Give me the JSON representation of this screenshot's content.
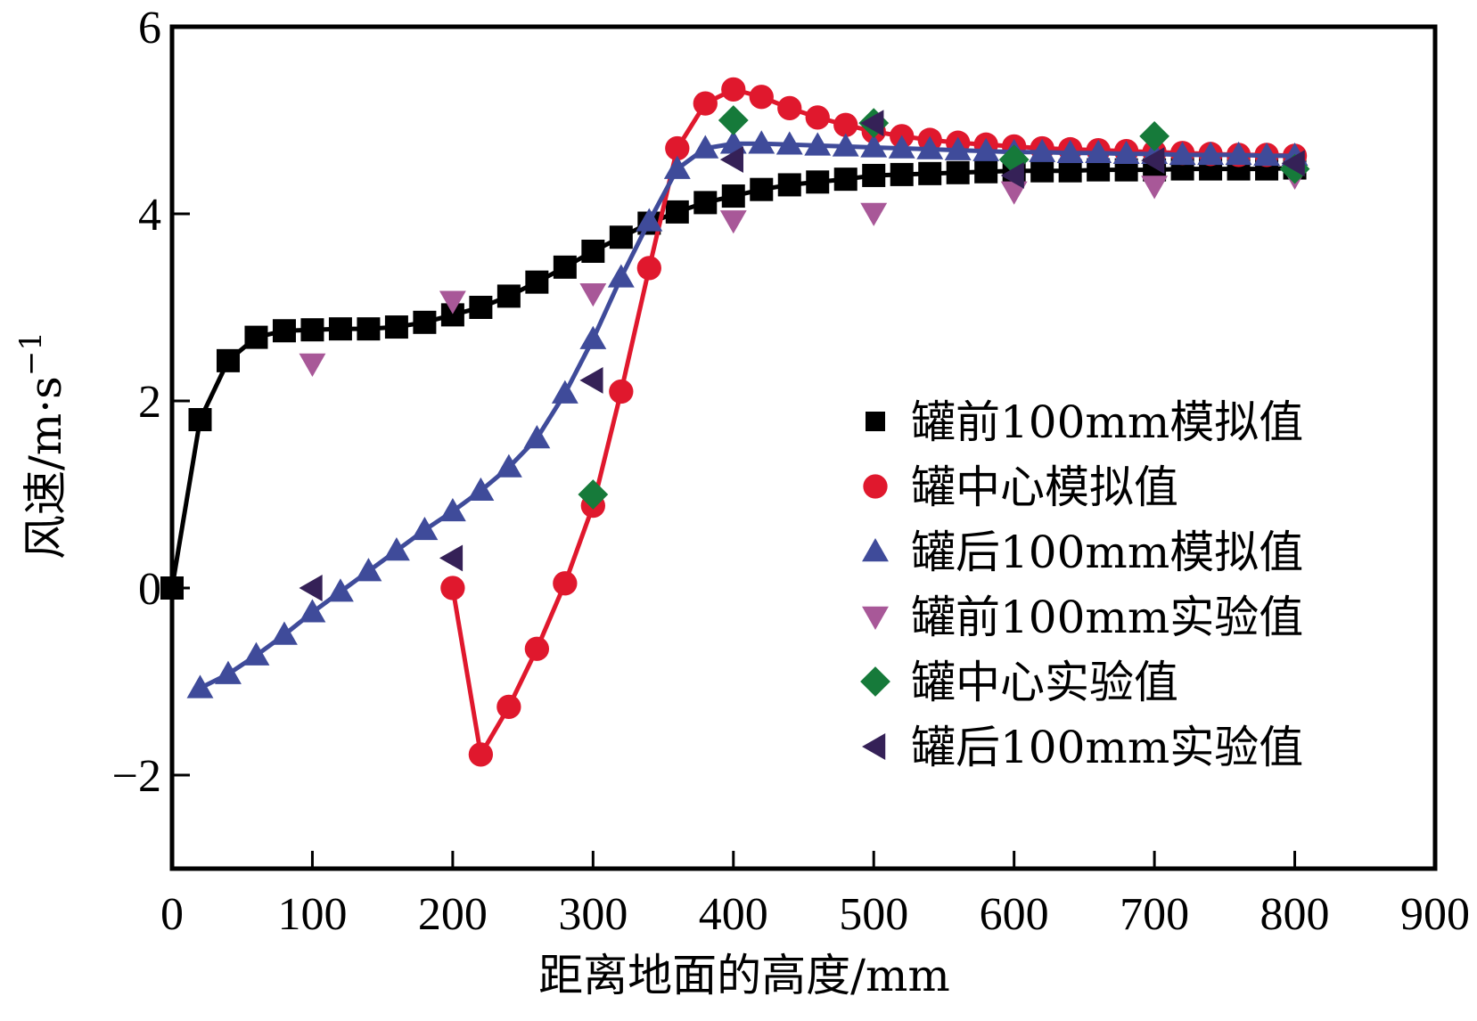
{
  "chart_data": {
    "type": "line",
    "title": "",
    "xlabel": "距离地面的高度/mm",
    "ylabel": "风速/m·s",
    "ylabel_superscript": "−1",
    "xlim": [
      0,
      900
    ],
    "ylim": [
      -3,
      6
    ],
    "xticks": [
      0,
      100,
      200,
      300,
      400,
      500,
      600,
      700,
      800,
      900
    ],
    "xtick_labels": [
      "0",
      "100",
      "200",
      "300",
      "400",
      "500",
      "600",
      "700",
      "800",
      "900"
    ],
    "yticks": [
      -2,
      0,
      2,
      4,
      6
    ],
    "ytick_labels": [
      "−2",
      "0",
      "2",
      "4",
      "6"
    ],
    "grid": false,
    "legend_position": "center-right",
    "series": [
      {
        "name": "罐前100mm模拟值",
        "marker": "square",
        "color": "#000000",
        "line": true,
        "x": [
          0,
          20,
          40,
          60,
          80,
          100,
          120,
          140,
          160,
          180,
          200,
          220,
          240,
          260,
          280,
          300,
          320,
          340,
          360,
          380,
          400,
          420,
          440,
          460,
          480,
          500,
          520,
          540,
          560,
          580,
          600,
          620,
          640,
          660,
          680,
          700,
          720,
          740,
          760,
          780,
          800
        ],
        "y": [
          0,
          1.8,
          2.43,
          2.68,
          2.75,
          2.76,
          2.77,
          2.77,
          2.79,
          2.84,
          2.92,
          3.0,
          3.12,
          3.27,
          3.43,
          3.6,
          3.75,
          3.9,
          4.02,
          4.12,
          4.19,
          4.26,
          4.31,
          4.34,
          4.37,
          4.41,
          4.42,
          4.43,
          4.44,
          4.45,
          4.46,
          4.46,
          4.46,
          4.47,
          4.47,
          4.47,
          4.48,
          4.48,
          4.48,
          4.48,
          4.49
        ]
      },
      {
        "name": "罐中心模拟值",
        "marker": "circle",
        "color": "#e0182d",
        "line": true,
        "x": [
          200,
          220,
          240,
          260,
          280,
          300,
          320,
          340,
          360,
          380,
          400,
          420,
          440,
          460,
          480,
          500,
          520,
          540,
          560,
          580,
          600,
          620,
          640,
          660,
          680,
          700,
          720,
          740,
          760,
          780,
          800
        ],
        "y": [
          0,
          -1.78,
          -1.27,
          -0.65,
          0.05,
          0.88,
          2.1,
          3.42,
          4.7,
          5.18,
          5.33,
          5.25,
          5.13,
          5.03,
          4.95,
          4.88,
          4.83,
          4.79,
          4.76,
          4.74,
          4.72,
          4.7,
          4.69,
          4.68,
          4.67,
          4.66,
          4.65,
          4.64,
          4.63,
          4.63,
          4.62
        ]
      },
      {
        "name": "罐后100mm模拟值",
        "marker": "triangle-up",
        "color": "#3f4b9a",
        "line": true,
        "x": [
          20,
          40,
          60,
          80,
          100,
          120,
          140,
          160,
          180,
          200,
          220,
          240,
          260,
          280,
          300,
          320,
          340,
          360,
          380,
          400,
          420,
          440,
          460,
          480,
          500,
          520,
          540,
          560,
          580,
          600,
          620,
          640,
          660,
          680,
          700,
          720,
          740,
          760,
          780,
          800
        ],
        "y": [
          -1.07,
          -0.92,
          -0.72,
          -0.5,
          -0.26,
          -0.04,
          0.18,
          0.4,
          0.62,
          0.82,
          1.04,
          1.29,
          1.6,
          2.08,
          2.66,
          3.32,
          3.92,
          4.48,
          4.7,
          4.75,
          4.75,
          4.74,
          4.73,
          4.72,
          4.71,
          4.7,
          4.69,
          4.68,
          4.67,
          4.66,
          4.66,
          4.65,
          4.65,
          4.64,
          4.64,
          4.63,
          4.63,
          4.63,
          4.62,
          4.62
        ]
      },
      {
        "name": "罐前100mm实验值",
        "marker": "triangle-down",
        "color": "#a85898",
        "line": false,
        "x": [
          100,
          200,
          300,
          400,
          500,
          600,
          700,
          800
        ],
        "y": [
          2.4,
          3.07,
          3.15,
          3.93,
          4.01,
          4.24,
          4.3,
          4.4
        ]
      },
      {
        "name": "罐中心实验值",
        "marker": "diamond",
        "color": "#167a3a",
        "line": false,
        "x": [
          300,
          400,
          500,
          600,
          700,
          800
        ],
        "y": [
          1.0,
          5.0,
          4.97,
          4.58,
          4.83,
          4.48
        ]
      },
      {
        "name": "罐后100mm实验值",
        "marker": "triangle-left",
        "color": "#352157",
        "line": false,
        "x": [
          100,
          200,
          300,
          400,
          500,
          600,
          700,
          800
        ],
        "y": [
          0,
          0.32,
          2.22,
          4.58,
          4.97,
          4.41,
          4.57,
          4.54
        ]
      }
    ]
  }
}
